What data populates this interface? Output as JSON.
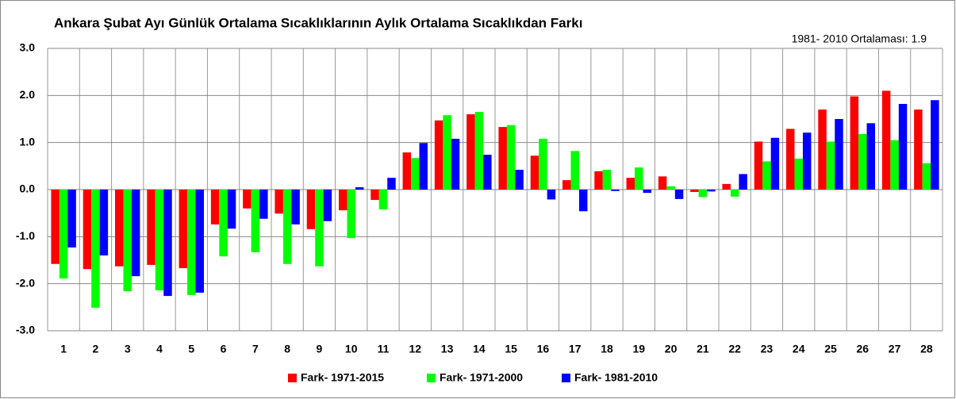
{
  "chart_data": {
    "type": "bar",
    "title": "Ankara Şubat Ayı Günlük Ortalama Sıcaklıklarının Aylık Ortalama Sıcaklıkdan Farkı",
    "annotation": "1981- 2010 Ortalaması: 1.9",
    "categories": [
      "1",
      "2",
      "3",
      "4",
      "5",
      "6",
      "7",
      "8",
      "9",
      "10",
      "11",
      "12",
      "13",
      "14",
      "15",
      "16",
      "17",
      "18",
      "19",
      "20",
      "21",
      "22",
      "23",
      "24",
      "25",
      "26",
      "27",
      "28"
    ],
    "series": [
      {
        "name": "Fark- 1971-2015",
        "color": "#ff0000",
        "values": [
          -1.58,
          -1.69,
          -1.63,
          -1.6,
          -1.67,
          -0.74,
          -0.4,
          -0.51,
          -0.84,
          -0.44,
          -0.22,
          0.79,
          1.47,
          1.6,
          1.33,
          0.72,
          0.2,
          0.39,
          0.25,
          0.28,
          -0.05,
          0.12,
          1.02,
          1.29,
          1.7,
          1.98,
          2.1,
          1.7
        ]
      },
      {
        "name": "Fark- 1971-2000",
        "color": "#00ff00",
        "values": [
          -1.89,
          -2.51,
          -2.16,
          -2.14,
          -2.24,
          -1.42,
          -1.33,
          -1.58,
          -1.63,
          -1.03,
          -0.42,
          0.67,
          1.58,
          1.65,
          1.37,
          1.08,
          0.82,
          0.42,
          0.47,
          0.07,
          -0.16,
          -0.15,
          0.6,
          0.66,
          1.02,
          1.18,
          1.05,
          0.56
        ]
      },
      {
        "name": "Fark- 1981-2010",
        "color": "#0000ff",
        "values": [
          -1.23,
          -1.4,
          -1.84,
          -2.26,
          -2.19,
          -0.83,
          -0.62,
          -0.74,
          -0.67,
          0.05,
          0.25,
          0.99,
          1.08,
          0.74,
          0.42,
          -0.21,
          -0.46,
          -0.03,
          -0.07,
          -0.2,
          -0.04,
          0.33,
          1.1,
          1.21,
          1.5,
          1.41,
          1.82,
          1.9
        ]
      }
    ],
    "ylim": [
      -3,
      3
    ],
    "yticks": [
      {
        "value": -3,
        "label": "-3.0"
      },
      {
        "value": -2,
        "label": "-2.0"
      },
      {
        "value": -1,
        "label": "-1.0"
      },
      {
        "value": 0,
        "label": "0.0"
      },
      {
        "value": 1,
        "label": "1.0"
      },
      {
        "value": 2,
        "label": "2.0"
      },
      {
        "value": 3,
        "label": "3.0"
      }
    ],
    "grid": true,
    "legend": "bottom"
  }
}
